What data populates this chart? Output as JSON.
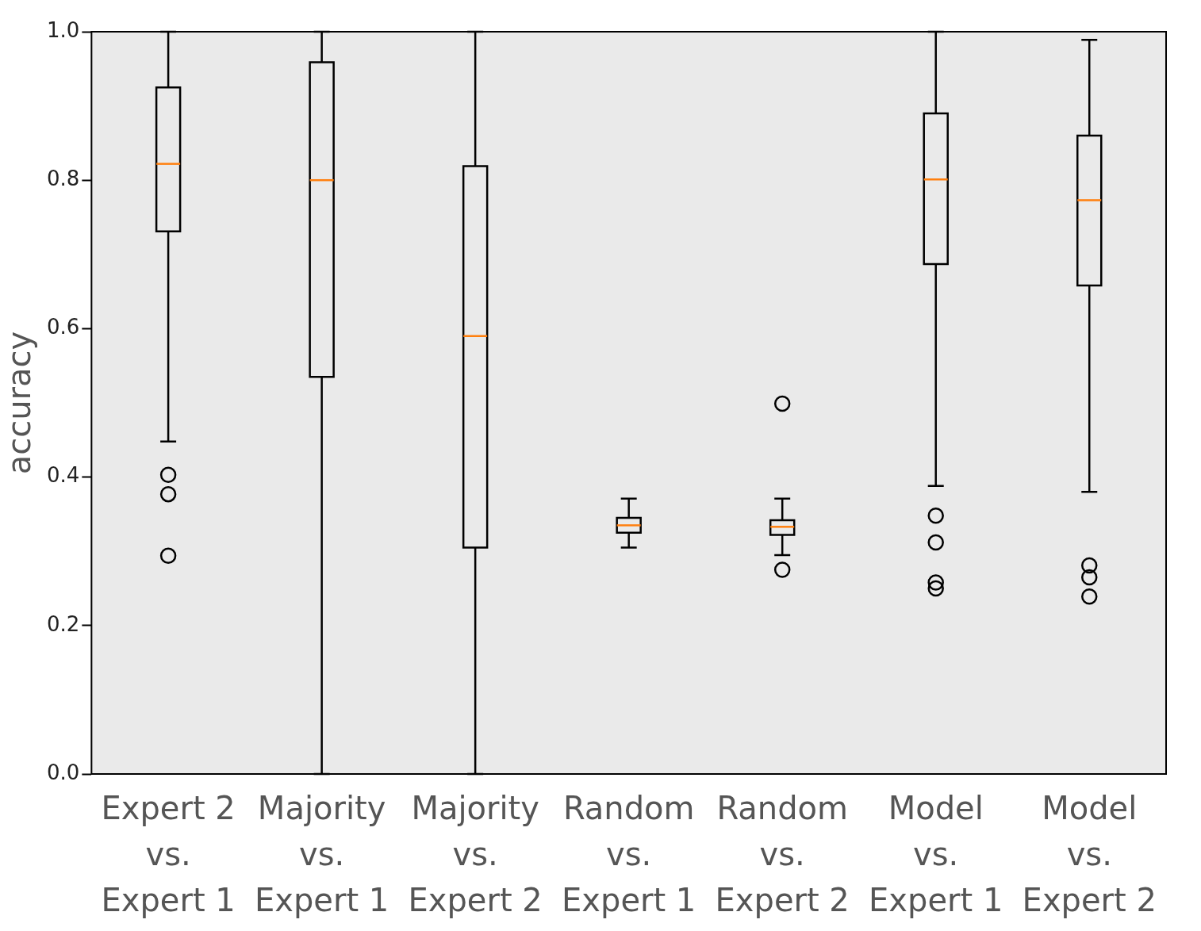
{
  "chart_data": {
    "type": "box",
    "ylabel": "accuracy",
    "categories": [
      "Expert 2\nvs.\nExpert 1",
      "Majority\nvs.\nExpert 1",
      "Majority\nvs.\nExpert 2",
      "Random\nvs.\nExpert 1",
      "Random\nvs.\nExpert 2",
      "Model\nvs.\nExpert 1",
      "Model\nvs.\nExpert 2"
    ],
    "boxes": [
      {
        "low": 0.448,
        "q1": 0.731,
        "median": 0.822,
        "q3": 0.925,
        "high": 1.0,
        "outliers": [
          0.403,
          0.377,
          0.294
        ]
      },
      {
        "low": 0.0,
        "q1": 0.535,
        "median": 0.8,
        "q3": 0.959,
        "high": 1.0
      },
      {
        "low": 0.0,
        "q1": 0.305,
        "median": 0.59,
        "q3": 0.819,
        "high": 1.0
      },
      {
        "low": 0.305,
        "q1": 0.325,
        "median": 0.335,
        "q3": 0.345,
        "high": 0.371
      },
      {
        "low": 0.295,
        "q1": 0.322,
        "median": 0.333,
        "q3": 0.342,
        "high": 0.371,
        "outliers": [
          0.499,
          0.275
        ]
      },
      {
        "low": 0.388,
        "q1": 0.687,
        "median": 0.801,
        "q3": 0.89,
        "high": 1.0,
        "outliers": [
          0.348,
          0.312,
          0.258,
          0.25
        ]
      },
      {
        "low": 0.38,
        "q1": 0.658,
        "median": 0.773,
        "q3": 0.86,
        "high": 0.989,
        "outliers": [
          0.281,
          0.265,
          0.239
        ]
      }
    ],
    "color": "#000000",
    "ylim": [
      0,
      1
    ],
    "yticks": [
      {
        "value": 0,
        "label": "0.0"
      },
      {
        "value": 0.2,
        "label": "0.2"
      },
      {
        "value": 0.4,
        "label": "0.4"
      },
      {
        "value": 0.6,
        "label": "0.6"
      },
      {
        "value": 0.8,
        "label": "0.8"
      },
      {
        "value": 1,
        "label": "1.0"
      }
    ],
    "grid": false,
    "legend": false
  }
}
